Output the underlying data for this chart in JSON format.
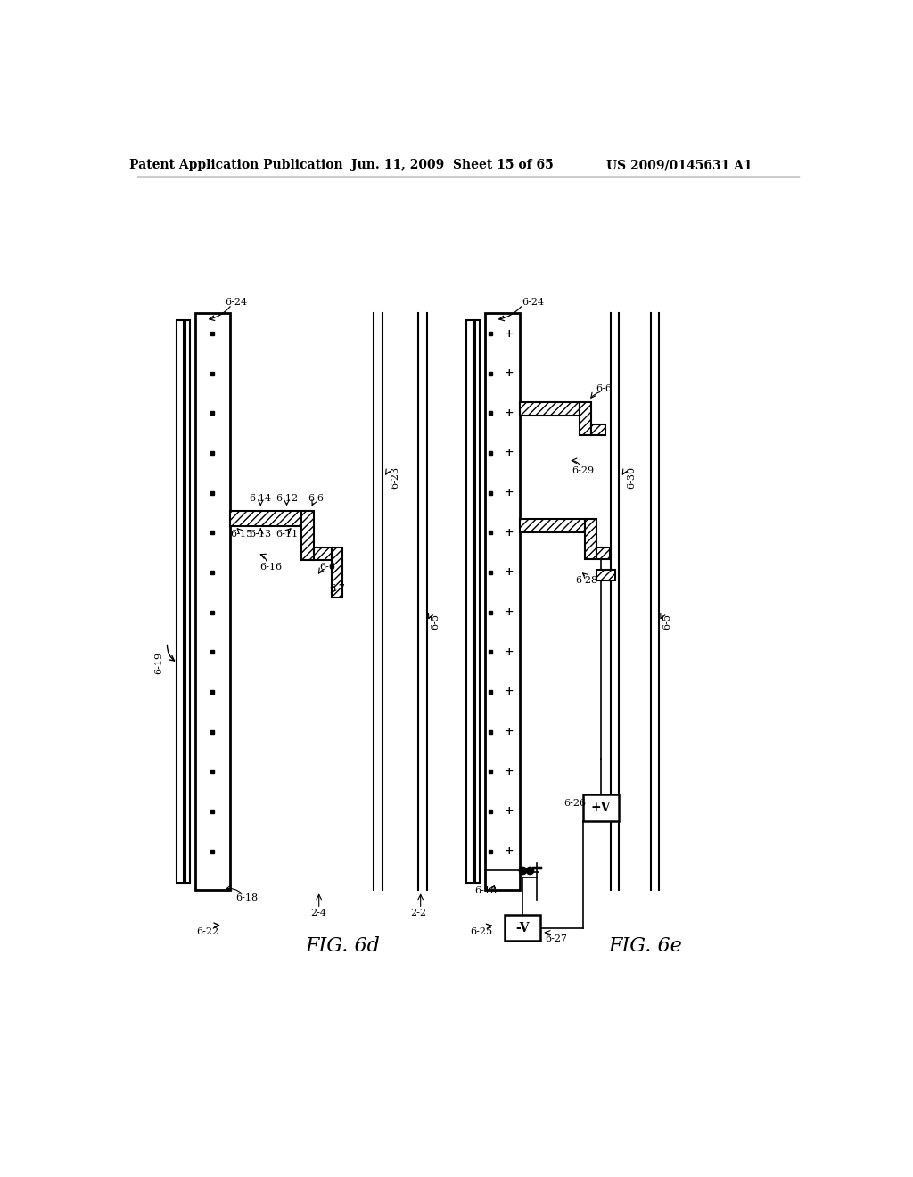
{
  "bg_color": "#ffffff",
  "header_text": "Patent Application Publication",
  "header_date": "Jun. 11, 2009  Sheet 15 of 65",
  "header_patent": "US 2009/0145631 A1",
  "fig6d_label": "FIG. 6d",
  "fig6e_label": "FIG. 6e",
  "fig6d_arrow_label": "6-22",
  "fig6e_arrow_label": "6-25"
}
